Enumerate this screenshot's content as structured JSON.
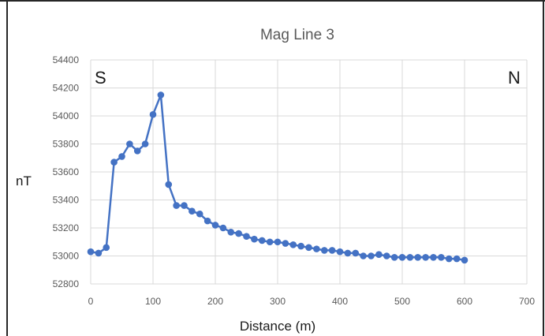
{
  "chart_data": {
    "type": "line",
    "title": "Mag Line 3",
    "xlabel": "Distance (m)",
    "ylabel": "nT",
    "xlim": [
      0,
      700
    ],
    "ylim": [
      52800,
      54400
    ],
    "x_ticks": [
      0,
      100,
      200,
      300,
      400,
      500,
      600,
      700
    ],
    "y_ticks": [
      52800,
      53000,
      53200,
      53400,
      53600,
      53800,
      54000,
      54200,
      54400
    ],
    "grid": true,
    "legend": "none",
    "annotations": {
      "left": "S",
      "right": "N"
    },
    "series": [
      {
        "color": "#4472c4",
        "marker": "circle",
        "points": [
          [
            0,
            53030
          ],
          [
            12.5,
            53020
          ],
          [
            25,
            53060
          ],
          [
            37.5,
            53670
          ],
          [
            50,
            53710
          ],
          [
            62.5,
            53800
          ],
          [
            75,
            53750
          ],
          [
            87.5,
            53800
          ],
          [
            100,
            54010
          ],
          [
            112.5,
            54150
          ],
          [
            125,
            53510
          ],
          [
            137.5,
            53360
          ],
          [
            150,
            53360
          ],
          [
            162.5,
            53320
          ],
          [
            175,
            53300
          ],
          [
            187.5,
            53250
          ],
          [
            200,
            53220
          ],
          [
            212.5,
            53200
          ],
          [
            225,
            53170
          ],
          [
            237.5,
            53160
          ],
          [
            250,
            53140
          ],
          [
            262.5,
            53120
          ],
          [
            275,
            53110
          ],
          [
            287.5,
            53100
          ],
          [
            300,
            53100
          ],
          [
            312.5,
            53090
          ],
          [
            325,
            53080
          ],
          [
            337.5,
            53070
          ],
          [
            350,
            53060
          ],
          [
            362.5,
            53050
          ],
          [
            375,
            53040
          ],
          [
            387.5,
            53040
          ],
          [
            400,
            53030
          ],
          [
            412.5,
            53020
          ],
          [
            425,
            53020
          ],
          [
            437.5,
            53000
          ],
          [
            450,
            53000
          ],
          [
            462.5,
            53010
          ],
          [
            475,
            53000
          ],
          [
            487.5,
            52990
          ],
          [
            500,
            52990
          ],
          [
            512.5,
            52990
          ],
          [
            525,
            52990
          ],
          [
            537.5,
            52990
          ],
          [
            550,
            52990
          ],
          [
            562.5,
            52990
          ],
          [
            575,
            52980
          ],
          [
            587.5,
            52980
          ],
          [
            600,
            52970
          ]
        ]
      }
    ]
  }
}
